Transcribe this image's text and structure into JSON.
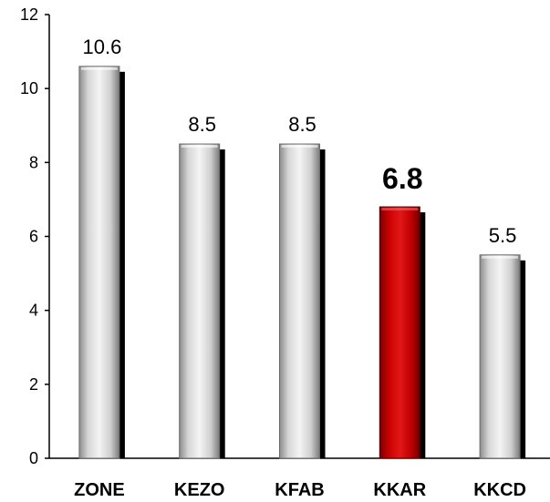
{
  "chart_data": {
    "type": "bar",
    "categories": [
      "ZONE",
      "KEZO",
      "KFAB",
      "KKAR",
      "KKCD"
    ],
    "values": [
      10.6,
      8.5,
      8.5,
      6.8,
      5.5
    ],
    "value_labels": [
      "10.6",
      "8.5",
      "8.5",
      "6.8",
      "5.5"
    ],
    "highlight_category": "KKAR",
    "ylim": [
      0,
      12
    ],
    "yticks": [
      "0",
      "2",
      "4",
      "6",
      "8",
      "10",
      "12"
    ],
    "ytick_values": [
      0,
      2,
      4,
      6,
      8,
      10,
      12
    ],
    "grid": false,
    "legend": "none",
    "title": "",
    "xlabel": "",
    "ylabel": "",
    "colors": {
      "bar": "#c8c8c8",
      "bar_highlight": "#c00000",
      "shadow": "#000000",
      "axis": "#000000"
    }
  }
}
